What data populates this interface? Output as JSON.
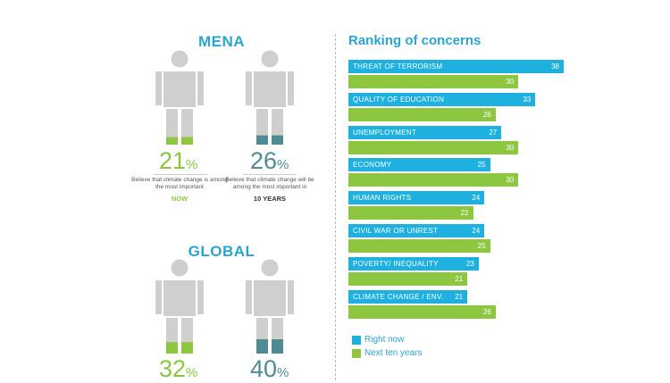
{
  "mena": {
    "title": "MENA",
    "now": {
      "percent": "21",
      "percent_sign": "%",
      "value": 21,
      "caption": "Believe that climate change is among the most important",
      "timeframe": "NOW"
    },
    "future": {
      "percent": "26",
      "percent_sign": "%",
      "value": 26,
      "caption": "Believe that climate change will be among the most important in",
      "timeframe": "10 YEARS"
    }
  },
  "global": {
    "title": "GLOBAL",
    "now": {
      "percent": "32",
      "percent_sign": "%",
      "value": 32
    },
    "future": {
      "percent": "40",
      "percent_sign": "%",
      "value": 40
    }
  },
  "colors": {
    "accent_blue": "#1eb1e0",
    "green": "#8dc63f",
    "teal": "#4f8b93",
    "figure_grey": "#cfcfcd",
    "title_blue": "#2aa4d0"
  },
  "chart_data": {
    "type": "bar",
    "orientation": "horizontal",
    "title": "Ranking of concerns",
    "categories": [
      "THREAT OF TERRORISM",
      "QUALITY OF EDUCATION",
      "UNEMPLOYMENT",
      "ECONOMY",
      "HUMAN RIGHTS",
      "CIVIL WAR OR UNREST",
      "POVERTY/ INEQUALITY",
      "CLIMATE CHANGE / ENV."
    ],
    "series": [
      {
        "name": "Right now",
        "color": "#1eb1e0",
        "values": [
          38,
          33,
          27,
          25,
          24,
          24,
          23,
          21
        ]
      },
      {
        "name": "Next ten years",
        "color": "#8dc63f",
        "values": [
          30,
          26,
          30,
          30,
          22,
          25,
          21,
          26
        ]
      }
    ],
    "xlim": [
      0,
      38
    ],
    "legend": "bottom-left",
    "grid": false
  }
}
